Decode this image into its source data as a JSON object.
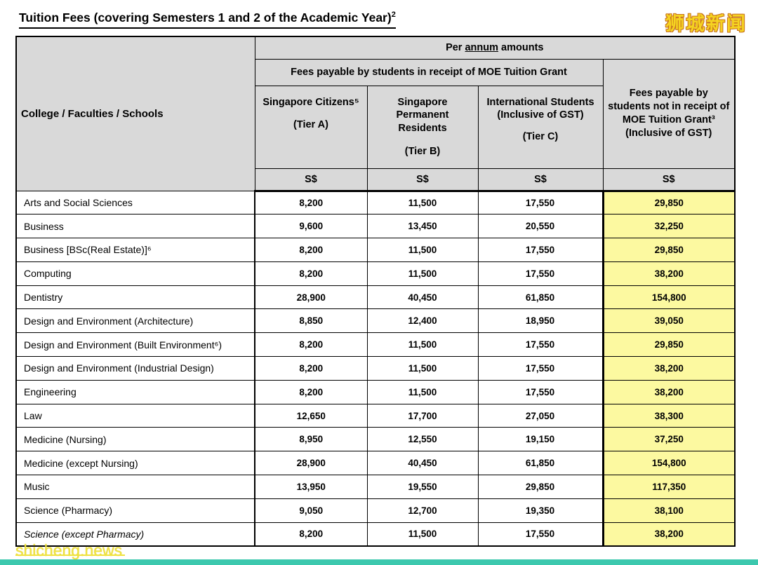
{
  "page": {
    "title_text": "Tuition Fees (covering Semesters 1 and 2 of the Academic Year)",
    "title_sup": "2",
    "watermark_top": "狮城新闻",
    "watermark_bottom": "shicheng.news"
  },
  "table": {
    "corner_header": "College / Faculties / Schools",
    "per_annum": {
      "pre": "Per ",
      "underlined": "annum",
      "post": " amounts"
    },
    "grant_group_header": "Fees payable by students in receipt of MOE Tuition Grant",
    "no_grant_header": "Fees payable by students not in receipt of MOE Tuition Grant³ (Inclusive of GST)",
    "grant_columns": [
      {
        "name": "Singapore Citizens⁵",
        "tier": "(Tier A)"
      },
      {
        "name": "Singapore Permanent Residents",
        "tier": "(Tier B)"
      },
      {
        "name": "International Students (Inclusive of GST)",
        "tier": "(Tier C)"
      }
    ],
    "currency": "S$",
    "rows": [
      {
        "name": "Arts and Social Sciences",
        "italic": false,
        "values": [
          "8,200",
          "11,500",
          "17,550",
          "29,850"
        ]
      },
      {
        "name": "Business",
        "italic": false,
        "values": [
          "9,600",
          "13,450",
          "20,550",
          "32,250"
        ]
      },
      {
        "name": "Business [BSc(Real Estate)]⁶",
        "italic": false,
        "values": [
          "8,200",
          "11,500",
          "17,550",
          "29,850"
        ]
      },
      {
        "name": "Computing",
        "italic": false,
        "values": [
          "8,200",
          "11,500",
          "17,550",
          "38,200"
        ]
      },
      {
        "name": "Dentistry",
        "italic": false,
        "values": [
          "28,900",
          "40,450",
          "61,850",
          "154,800"
        ]
      },
      {
        "name": "Design and Environment (Architecture)",
        "italic": false,
        "values": [
          "8,850",
          "12,400",
          "18,950",
          "39,050"
        ]
      },
      {
        "name": "Design and Environment (Built Environment⁶)",
        "italic": false,
        "values": [
          "8,200",
          "11,500",
          "17,550",
          "29,850"
        ]
      },
      {
        "name": "Design and Environment (Industrial Design)",
        "italic": false,
        "values": [
          "8,200",
          "11,500",
          "17,550",
          "38,200"
        ]
      },
      {
        "name": "Engineering",
        "italic": false,
        "values": [
          "8,200",
          "11,500",
          "17,550",
          "38,200"
        ]
      },
      {
        "name": "Law",
        "italic": false,
        "values": [
          "12,650",
          "17,700",
          "27,050",
          "38,300"
        ]
      },
      {
        "name": "Medicine (Nursing)",
        "italic": false,
        "values": [
          "8,950",
          "12,550",
          "19,150",
          "37,250"
        ]
      },
      {
        "name": "Medicine (except Nursing)",
        "italic": false,
        "values": [
          "28,900",
          "40,450",
          "61,850",
          "154,800"
        ]
      },
      {
        "name": "Music",
        "italic": false,
        "values": [
          "13,950",
          "19,550",
          "29,850",
          "117,350"
        ]
      },
      {
        "name": "Science (Pharmacy)",
        "italic": false,
        "values": [
          "9,050",
          "12,700",
          "19,350",
          "38,100"
        ]
      },
      {
        "name": "Science (except Pharmacy)",
        "italic": true,
        "values": [
          "8,200",
          "11,500",
          "17,550",
          "38,200"
        ]
      }
    ]
  },
  "colors": {
    "header_bg": "#d9d9d9",
    "highlight_bg": "#fcf9a0",
    "accent_teal": "#3cc8ae",
    "watermark_yellow": "#f5d321"
  }
}
